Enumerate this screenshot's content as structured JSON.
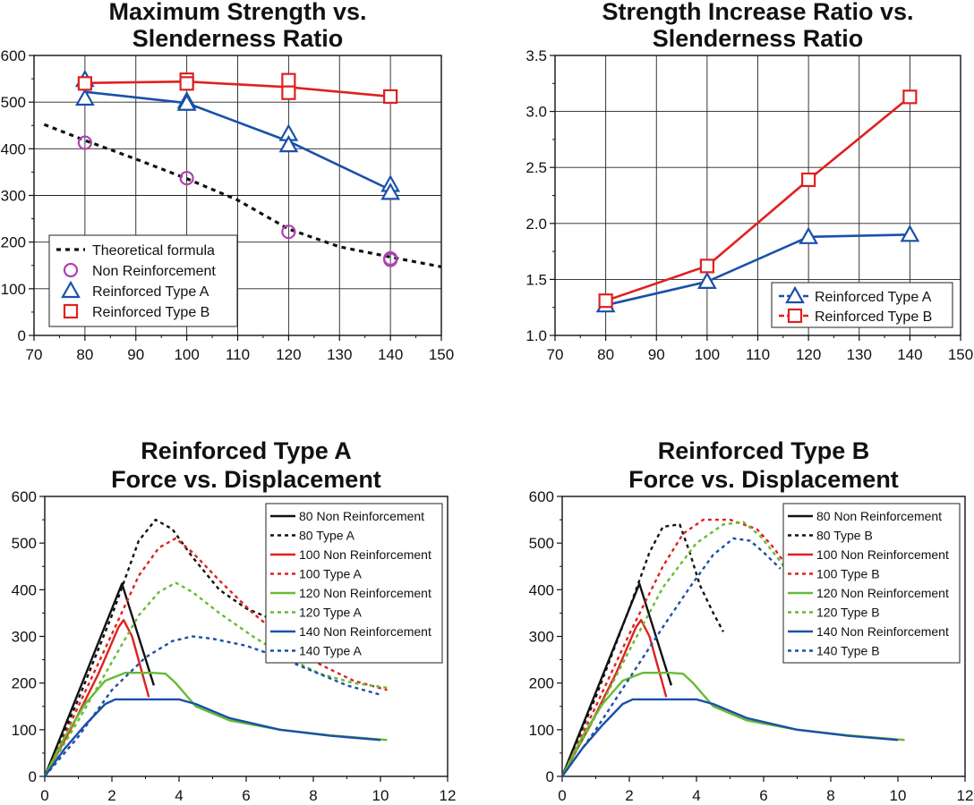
{
  "chart_data": [
    {
      "type": "scatter",
      "title": [
        "Maximum Strength vs.",
        "Slenderness Ratio"
      ],
      "xlabel": "",
      "ylabel": "",
      "xlim": [
        70,
        150
      ],
      "ylim": [
        0,
        600
      ],
      "xticks": [
        70,
        80,
        90,
        100,
        110,
        120,
        130,
        140,
        150
      ],
      "yticks": [
        0,
        100,
        200,
        300,
        400,
        500,
        600
      ],
      "grid": true,
      "legend_position": "bottom-left",
      "series": [
        {
          "name": "Theoretical formula",
          "style": "dotted-line",
          "color": "#111111",
          "x": [
            72,
            80,
            90,
            100,
            110,
            120,
            130,
            140,
            150
          ],
          "y": [
            452,
            418,
            378,
            336,
            290,
            228,
            190,
            168,
            147
          ]
        },
        {
          "name": "Non Reinforcement",
          "style": "circle",
          "color": "#b040b0",
          "x": [
            80,
            100,
            120,
            140,
            140
          ],
          "y": [
            413,
            337,
            222,
            162,
            165
          ]
        },
        {
          "name": "Reinforced Type A",
          "style": "triangle-line",
          "color": "#1a50a8",
          "x": [
            80,
            80,
            100,
            100,
            120,
            120,
            140,
            140
          ],
          "y": [
            548,
            508,
            502,
            497,
            432,
            408,
            323,
            306
          ],
          "line_x": [
            80,
            100,
            120,
            140
          ],
          "line_y": [
            522,
            498,
            416,
            312
          ]
        },
        {
          "name": "Reinforced Type B",
          "style": "square-line",
          "color": "#e02020",
          "x": [
            80,
            100,
            100,
            120,
            120,
            140
          ],
          "y": [
            540,
            548,
            540,
            547,
            520,
            512
          ],
          "line_x": [
            80,
            100,
            120,
            140
          ],
          "line_y": [
            541,
            544,
            532,
            512
          ]
        }
      ]
    },
    {
      "type": "line",
      "title": [
        "Strength Increase Ratio vs.",
        "Slenderness Ratio"
      ],
      "xlabel": "",
      "ylabel": "",
      "xlim": [
        70,
        150
      ],
      "ylim": [
        1.0,
        3.5
      ],
      "xticks": [
        70,
        80,
        90,
        100,
        110,
        120,
        130,
        140,
        150
      ],
      "yticks": [
        "1.0",
        "1.5",
        "2.0",
        "2.5",
        "3.0",
        "3.5"
      ],
      "grid": true,
      "legend_position": "bottom-right",
      "series": [
        {
          "name": "Reinforced Type A",
          "style": "triangle-line",
          "color": "#1a50a8",
          "x": [
            80,
            100,
            120,
            140
          ],
          "y": [
            1.27,
            1.48,
            1.88,
            1.9
          ]
        },
        {
          "name": "Reinforced Type B",
          "style": "square-line",
          "color": "#e02020",
          "x": [
            80,
            100,
            120,
            140
          ],
          "y": [
            1.31,
            1.62,
            2.39,
            3.13
          ]
        }
      ]
    },
    {
      "type": "line",
      "title": [
        "Reinforced Type A",
        "Force vs. Displacement"
      ],
      "xlabel": "",
      "ylabel": "",
      "xlim": [
        0,
        12
      ],
      "ylim": [
        0,
        600
      ],
      "xticks": [
        0,
        2,
        4,
        6,
        8,
        10,
        12
      ],
      "yticks": [
        0,
        100,
        200,
        300,
        400,
        500,
        600
      ],
      "grid": false,
      "legend_position": "top-right",
      "series": [
        {
          "name": "80 Non Reinforcement",
          "color": "#111111",
          "dash": false,
          "x": [
            0,
            2.3,
            3.25
          ],
          "y": [
            0,
            413,
            195
          ]
        },
        {
          "name": "80 Type A",
          "color": "#111111",
          "dash": true,
          "x": [
            0,
            1.0,
            2.0,
            2.8,
            3.3,
            3.8,
            4.4,
            5.2,
            6.0,
            7.0
          ],
          "y": [
            0,
            165,
            345,
            505,
            550,
            530,
            470,
            400,
            360,
            330
          ]
        },
        {
          "name": "100 Non Reinforcement",
          "color": "#e02020",
          "dash": false,
          "x": [
            0,
            0.8,
            1.6,
            2.2,
            2.35,
            2.6,
            3.1
          ],
          "y": [
            0,
            105,
            220,
            320,
            335,
            300,
            170
          ]
        },
        {
          "name": "100 Type A",
          "color": "#e02020",
          "dash": true,
          "x": [
            0,
            1.0,
            2.0,
            2.8,
            3.4,
            3.9,
            4.4,
            5.2,
            6.2,
            7.2,
            8.2,
            9.2,
            10.2
          ],
          "y": [
            0,
            150,
            305,
            430,
            490,
            510,
            480,
            420,
            350,
            290,
            240,
            205,
            185
          ]
        },
        {
          "name": "120 Non Reinforcement",
          "color": "#66bb33",
          "dash": false,
          "x": [
            0,
            0.6,
            1.2,
            1.8,
            2.4,
            3.2,
            3.6,
            3.9,
            4.5,
            5.5,
            7.0,
            8.5,
            10.2
          ],
          "y": [
            0,
            85,
            155,
            205,
            222,
            222,
            220,
            200,
            150,
            120,
            100,
            88,
            78
          ]
        },
        {
          "name": "120 Type A",
          "color": "#66bb33",
          "dash": true,
          "x": [
            0,
            1.0,
            2.0,
            2.8,
            3.4,
            3.9,
            4.4,
            5.2,
            6.2,
            7.2,
            8.2,
            9.2,
            10.2
          ],
          "y": [
            0,
            120,
            245,
            345,
            395,
            415,
            395,
            350,
            300,
            255,
            220,
            200,
            190
          ]
        },
        {
          "name": "140 Non Reinforcement",
          "color": "#1a50a8",
          "dash": false,
          "x": [
            0,
            0.6,
            1.2,
            1.8,
            2.1,
            3.0,
            4.0,
            4.5,
            5.5,
            7.0,
            8.5,
            10.0
          ],
          "y": [
            0,
            60,
            110,
            155,
            165,
            165,
            165,
            155,
            125,
            100,
            87,
            78
          ]
        },
        {
          "name": "140 Type A",
          "color": "#1a50a8",
          "dash": true,
          "x": [
            0,
            1.0,
            2.0,
            3.0,
            3.8,
            4.4,
            5.0,
            6.0,
            7.0,
            8.0,
            9.0,
            10.0
          ],
          "y": [
            0,
            85,
            185,
            255,
            290,
            300,
            295,
            280,
            255,
            225,
            195,
            175
          ]
        }
      ]
    },
    {
      "type": "line",
      "title": [
        "Reinforced Type B",
        "Force vs. Displacement"
      ],
      "xlabel": "",
      "ylabel": "",
      "xlim": [
        0,
        12
      ],
      "ylim": [
        0,
        600
      ],
      "xticks": [
        0,
        2,
        4,
        6,
        8,
        10,
        12
      ],
      "yticks": [
        0,
        100,
        200,
        300,
        400,
        500,
        600
      ],
      "grid": false,
      "legend_position": "top-right",
      "series": [
        {
          "name": "80 Non Reinforcement",
          "color": "#111111",
          "dash": false,
          "x": [
            0,
            2.3,
            3.25
          ],
          "y": [
            0,
            413,
            195
          ]
        },
        {
          "name": "80 Type B",
          "color": "#111111",
          "dash": true,
          "x": [
            0,
            1.0,
            2.0,
            2.6,
            3.0,
            3.5,
            3.8,
            4.1,
            4.5,
            4.8
          ],
          "y": [
            0,
            170,
            360,
            480,
            535,
            540,
            480,
            410,
            350,
            310
          ]
        },
        {
          "name": "100 Non Reinforcement",
          "color": "#e02020",
          "dash": false,
          "x": [
            0,
            0.8,
            1.6,
            2.2,
            2.35,
            2.6,
            3.1
          ],
          "y": [
            0,
            105,
            220,
            320,
            335,
            300,
            170
          ]
        },
        {
          "name": "100 Type B",
          "color": "#e02020",
          "dash": true,
          "x": [
            0,
            1.0,
            2.0,
            3.0,
            3.6,
            4.2,
            5.0,
            5.8,
            6.3,
            6.7
          ],
          "y": [
            0,
            150,
            305,
            450,
            520,
            550,
            550,
            530,
            490,
            450
          ]
        },
        {
          "name": "120 Non Reinforcement",
          "color": "#66bb33",
          "dash": false,
          "x": [
            0,
            0.6,
            1.2,
            1.8,
            2.4,
            3.2,
            3.6,
            3.9,
            4.5,
            5.5,
            7.0,
            8.5,
            10.2
          ],
          "y": [
            0,
            85,
            155,
            205,
            222,
            222,
            220,
            200,
            150,
            120,
            100,
            88,
            78
          ]
        },
        {
          "name": "120 Type B",
          "color": "#66bb33",
          "dash": true,
          "x": [
            0,
            1.0,
            2.0,
            3.0,
            4.0,
            4.8,
            5.4,
            5.9,
            6.4,
            6.8
          ],
          "y": [
            0,
            130,
            270,
            405,
            500,
            540,
            545,
            515,
            470,
            430
          ]
        },
        {
          "name": "140 Non Reinforcement",
          "color": "#1a50a8",
          "dash": false,
          "x": [
            0,
            0.6,
            1.2,
            1.8,
            2.1,
            3.0,
            4.0,
            4.5,
            5.5,
            7.0,
            8.5,
            10.0
          ],
          "y": [
            0,
            60,
            110,
            155,
            165,
            165,
            165,
            155,
            125,
            100,
            87,
            78
          ]
        },
        {
          "name": "140 Type B",
          "color": "#1a50a8",
          "dash": true,
          "x": [
            0,
            1.0,
            2.0,
            3.0,
            3.8,
            4.5,
            5.1,
            5.6,
            6.0,
            6.5
          ],
          "y": [
            0,
            100,
            210,
            320,
            405,
            475,
            510,
            505,
            480,
            445
          ]
        }
      ]
    }
  ]
}
